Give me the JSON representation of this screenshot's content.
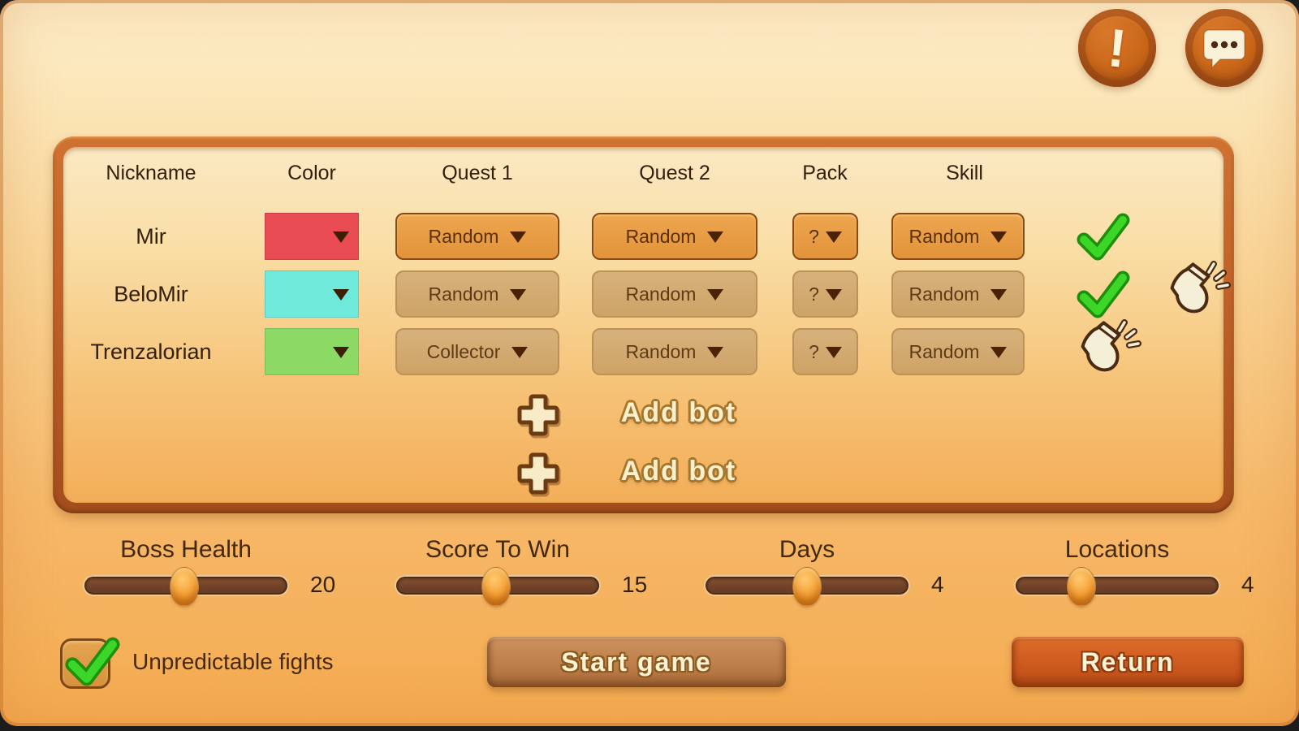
{
  "toolbar": {
    "alert_glyph": "!"
  },
  "table": {
    "columns": [
      "Nickname",
      "Color",
      "Quest 1",
      "Quest 2",
      "Pack",
      "Skill"
    ],
    "players": [
      {
        "name": "Mir",
        "color": "#e84b52",
        "quest1": "Random",
        "quest2": "Random",
        "pack": "?",
        "skill": "Random",
        "ready": true,
        "kickable": false
      },
      {
        "name": "BeloMir",
        "color": "#6fe9d9",
        "quest1": "Random",
        "quest2": "Random",
        "pack": "?",
        "skill": "Random",
        "ready": true,
        "kickable": true
      },
      {
        "name": "Trenzalorian",
        "color": "#8dd966",
        "quest1": "Collector",
        "quest2": "Random",
        "pack": "?",
        "skill": "Random",
        "ready": false,
        "kickable": true
      }
    ],
    "add_bot_label": "Add bot"
  },
  "settings": {
    "sliders": [
      {
        "label": "Boss Health",
        "value": "20",
        "percent": 49
      },
      {
        "label": "Score To Win",
        "value": "15",
        "percent": 49
      },
      {
        "label": "Days",
        "value": "4",
        "percent": 50
      },
      {
        "label": "Locations",
        "value": "4",
        "percent": 32
      }
    ],
    "checkbox_label": "Unpredictable fights",
    "checkbox_checked": true
  },
  "buttons": {
    "start": "Start game",
    "return": "Return"
  },
  "icons": {
    "alert": "exclamation-icon",
    "chat": "chat-bubble-icon",
    "ready": "check-icon",
    "kick": "kick-boot-icon",
    "add": "plus-icon",
    "dropdown": "triangle-down-icon"
  },
  "colors": {
    "player_red": "#e84b52",
    "player_cyan": "#6fe9d9",
    "player_green": "#8dd966",
    "check_green": "#3bd628",
    "accent_orange": "#e59b43",
    "row_tan": "#d3ac77"
  }
}
